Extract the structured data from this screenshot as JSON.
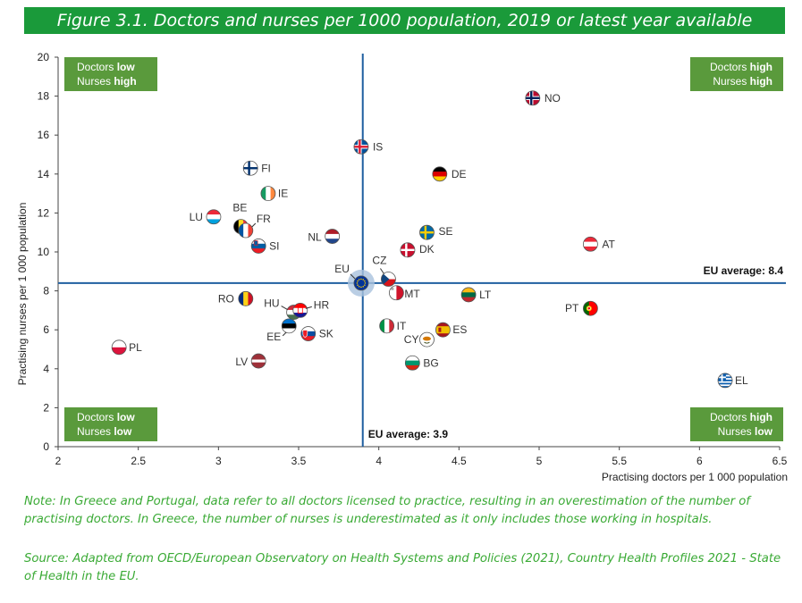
{
  "figure_title": "Figure 3.1. Doctors and nurses per 1000 population, 2019 or latest year available",
  "note": "Note: In Greece and Portugal, data refer to all doctors licensed to practice, resulting in an overestimation of the number of practising doctors. In Greece, the number of nurses is underestimated as it only includes those working in hospitals.",
  "source": "Source: Adapted from OECD/European Observatory on Health Systems and Policies (2021), Country Health Profiles 2021 - State of Health in the EU.",
  "colors": {
    "quadrant": "#5a9a3c",
    "axisline": "#1f5fa0",
    "title_bg": "#1a9a3a",
    "note": "#3aaa35"
  },
  "chart_data": {
    "type": "scatter",
    "title": "Doctors and nurses per 1000 population, 2019 or latest year available",
    "xlabel": "Practising doctors per 1 000 population",
    "ylabel": "Practising nurses per 1 000 population",
    "xlim": [
      2,
      6.5
    ],
    "ylim": [
      0,
      20
    ],
    "xticks": [
      "2",
      "2.5",
      "3",
      "3.5",
      "4",
      "4.5",
      "5",
      "5.5",
      "6",
      "6.5"
    ],
    "yticks": [
      "0",
      "2",
      "4",
      "6",
      "8",
      "10",
      "12",
      "14",
      "16",
      "18",
      "20"
    ],
    "eu_avg_x": 3.9,
    "eu_avg_y": 8.4,
    "eu_avg_x_label": "EU average: 3.9",
    "eu_avg_y_label": "EU average: 8.4",
    "quadrants": [
      {
        "id": "top-left",
        "line1": [
          "Doctors ",
          "low"
        ],
        "line2": [
          "Nurses ",
          "high"
        ]
      },
      {
        "id": "top-right",
        "line1": [
          "Doctors ",
          "high"
        ],
        "line2": [
          "Nurses ",
          "high"
        ]
      },
      {
        "id": "bottom-left",
        "line1": [
          "Doctors ",
          "low"
        ],
        "line2": [
          "Nurses ",
          "low"
        ]
      },
      {
        "id": "bottom-right",
        "line1": [
          "Doctors ",
          "high"
        ],
        "line2": [
          "Nurses ",
          "low"
        ]
      }
    ],
    "points": [
      {
        "code": "NO",
        "x": 4.96,
        "y": 17.9
      },
      {
        "code": "IS",
        "x": 3.89,
        "y": 15.4
      },
      {
        "code": "FI",
        "x": 3.2,
        "y": 14.3
      },
      {
        "code": "DE",
        "x": 4.38,
        "y": 14.0
      },
      {
        "code": "IE",
        "x": 3.31,
        "y": 13.0
      },
      {
        "code": "LU",
        "x": 2.97,
        "y": 11.8
      },
      {
        "code": "BE",
        "x": 3.14,
        "y": 11.3
      },
      {
        "code": "FR",
        "x": 3.17,
        "y": 11.1
      },
      {
        "code": "NL",
        "x": 3.71,
        "y": 10.8
      },
      {
        "code": "SI",
        "x": 3.25,
        "y": 10.3
      },
      {
        "code": "SE",
        "x": 4.3,
        "y": 11.0
      },
      {
        "code": "DK",
        "x": 4.18,
        "y": 10.1
      },
      {
        "code": "AT",
        "x": 5.32,
        "y": 10.4
      },
      {
        "code": "CZ",
        "x": 4.06,
        "y": 8.6
      },
      {
        "code": "EU",
        "x": 3.89,
        "y": 8.4
      },
      {
        "code": "MT",
        "x": 4.11,
        "y": 7.9
      },
      {
        "code": "LT",
        "x": 4.56,
        "y": 7.8
      },
      {
        "code": "RO",
        "x": 3.17,
        "y": 7.6
      },
      {
        "code": "PT",
        "x": 5.32,
        "y": 7.1
      },
      {
        "code": "HU",
        "x": 3.47,
        "y": 6.9
      },
      {
        "code": "HR",
        "x": 3.51,
        "y": 7.0
      },
      {
        "code": "EE",
        "x": 3.44,
        "y": 6.2
      },
      {
        "code": "IT",
        "x": 4.05,
        "y": 6.2
      },
      {
        "code": "ES",
        "x": 4.4,
        "y": 6.0
      },
      {
        "code": "SK",
        "x": 3.56,
        "y": 5.8
      },
      {
        "code": "CY",
        "x": 4.3,
        "y": 5.5
      },
      {
        "code": "PL",
        "x": 2.38,
        "y": 5.1
      },
      {
        "code": "LV",
        "x": 3.25,
        "y": 4.4
      },
      {
        "code": "BG",
        "x": 4.21,
        "y": 4.3
      },
      {
        "code": "EL",
        "x": 6.16,
        "y": 3.4
      }
    ]
  }
}
